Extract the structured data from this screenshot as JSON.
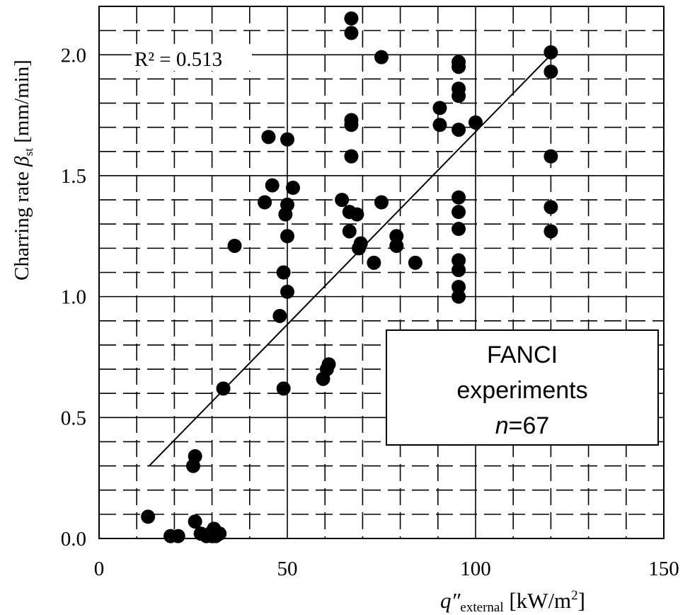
{
  "chart_data": {
    "type": "scatter",
    "title": "",
    "xlabel": {
      "main": "q″",
      "sub": "external",
      "unit_pre": " [kW/m",
      "unit_sup": "2",
      "unit_post": "]"
    },
    "ylabel": {
      "main": "Charring rate ",
      "symbol": "β",
      "sub": "st",
      "unit": " [mm/min]"
    },
    "x_ticks": [
      "0",
      "50",
      "100",
      "150"
    ],
    "y_ticks": [
      "0.0",
      "0.5",
      "1.0",
      "1.5",
      "2.0"
    ],
    "xlim": [
      0,
      150
    ],
    "ylim": [
      0,
      2.2
    ],
    "grid": {
      "major": "solid",
      "minor": "dashed"
    },
    "r_squared_label": "R² = 0.513",
    "legend_box": {
      "line1": "FANCI",
      "line2": "experiments",
      "n_symbol": "n",
      "n_value": "=67"
    },
    "trendline": {
      "x": [
        13.3,
        120
      ],
      "y": [
        0.3,
        2.0
      ]
    },
    "marker_color": "#000000",
    "points": [
      {
        "x": 13,
        "y": 0.09
      },
      {
        "x": 19,
        "y": 0.01
      },
      {
        "x": 21,
        "y": 0.01
      },
      {
        "x": 25,
        "y": 0.3
      },
      {
        "x": 25.5,
        "y": 0.34
      },
      {
        "x": 25.5,
        "y": 0.07
      },
      {
        "x": 27,
        "y": 0.02
      },
      {
        "x": 28.5,
        "y": 0.01
      },
      {
        "x": 29.5,
        "y": 0.02
      },
      {
        "x": 30,
        "y": 0.01
      },
      {
        "x": 30.5,
        "y": 0.04
      },
      {
        "x": 31,
        "y": 0.01
      },
      {
        "x": 32,
        "y": 0.02
      },
      {
        "x": 33,
        "y": 0.62
      },
      {
        "x": 36,
        "y": 1.21
      },
      {
        "x": 44,
        "y": 1.39
      },
      {
        "x": 45,
        "y": 1.66
      },
      {
        "x": 46,
        "y": 1.46
      },
      {
        "x": 48,
        "y": 0.92
      },
      {
        "x": 49,
        "y": 1.1
      },
      {
        "x": 49,
        "y": 0.62
      },
      {
        "x": 49.5,
        "y": 1.34
      },
      {
        "x": 50,
        "y": 1.65
      },
      {
        "x": 50,
        "y": 1.38
      },
      {
        "x": 50,
        "y": 1.25
      },
      {
        "x": 50,
        "y": 1.02
      },
      {
        "x": 51.5,
        "y": 1.45
      },
      {
        "x": 59.5,
        "y": 0.66
      },
      {
        "x": 60.5,
        "y": 0.7
      },
      {
        "x": 61,
        "y": 0.72
      },
      {
        "x": 64.5,
        "y": 1.4
      },
      {
        "x": 66.5,
        "y": 1.35
      },
      {
        "x": 66.5,
        "y": 1.27
      },
      {
        "x": 67,
        "y": 2.15
      },
      {
        "x": 67,
        "y": 2.09
      },
      {
        "x": 67,
        "y": 1.73
      },
      {
        "x": 67,
        "y": 1.71
      },
      {
        "x": 67,
        "y": 1.58
      },
      {
        "x": 68.5,
        "y": 1.34
      },
      {
        "x": 69,
        "y": 1.2
      },
      {
        "x": 69.5,
        "y": 1.22
      },
      {
        "x": 73,
        "y": 1.14
      },
      {
        "x": 75,
        "y": 1.99
      },
      {
        "x": 75,
        "y": 1.39
      },
      {
        "x": 79,
        "y": 1.25
      },
      {
        "x": 79,
        "y": 1.21
      },
      {
        "x": 84,
        "y": 1.14
      },
      {
        "x": 90.5,
        "y": 1.78
      },
      {
        "x": 90.5,
        "y": 1.71
      },
      {
        "x": 95.5,
        "y": 1.97
      },
      {
        "x": 95.5,
        "y": 1.95
      },
      {
        "x": 95.5,
        "y": 1.86
      },
      {
        "x": 95.5,
        "y": 1.83
      },
      {
        "x": 95.5,
        "y": 1.69
      },
      {
        "x": 95.5,
        "y": 1.41
      },
      {
        "x": 95.5,
        "y": 1.35
      },
      {
        "x": 95.5,
        "y": 1.28
      },
      {
        "x": 95.5,
        "y": 1.15
      },
      {
        "x": 95.5,
        "y": 1.11
      },
      {
        "x": 95.5,
        "y": 1.04
      },
      {
        "x": 95.5,
        "y": 1.0
      },
      {
        "x": 100,
        "y": 1.72
      },
      {
        "x": 120,
        "y": 2.01
      },
      {
        "x": 120,
        "y": 1.93
      },
      {
        "x": 120,
        "y": 1.58
      },
      {
        "x": 120,
        "y": 1.37
      },
      {
        "x": 120,
        "y": 1.27
      }
    ]
  }
}
